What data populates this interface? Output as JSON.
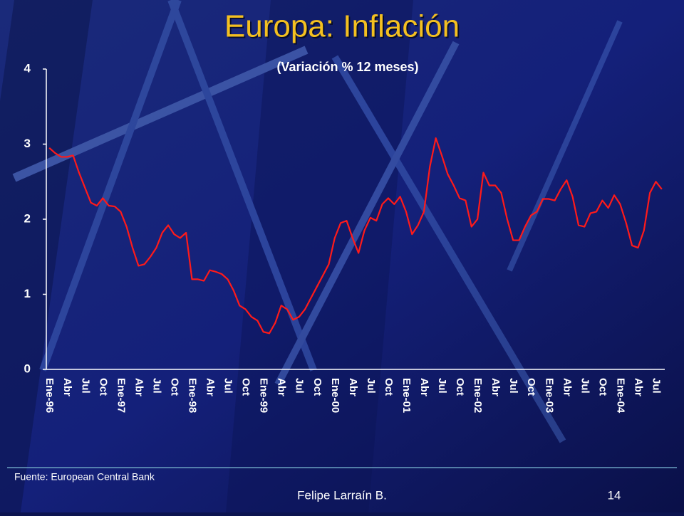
{
  "chart_data": {
    "type": "line",
    "title": "Europa: Inflación",
    "subtitle": "(Variación % 12 meses)",
    "source": "Fuente: European Central Bank",
    "categories": [
      "Ene-96",
      null,
      null,
      "Abr",
      null,
      null,
      "Jul",
      null,
      null,
      "Oct",
      null,
      null,
      "Ene-97",
      null,
      null,
      "Abr",
      null,
      null,
      "Jul",
      null,
      null,
      "Oct",
      null,
      null,
      "Ene-98",
      null,
      null,
      "Abr",
      null,
      null,
      "Jul",
      null,
      null,
      "Oct",
      null,
      null,
      "Ene-99",
      null,
      null,
      "Abr",
      null,
      null,
      "Jul",
      null,
      null,
      "Oct",
      null,
      null,
      "Ene-00",
      null,
      null,
      "Abr",
      null,
      null,
      "Jul",
      null,
      null,
      "Oct",
      null,
      null,
      "Ene-01",
      null,
      null,
      "Abr",
      null,
      null,
      "Jul",
      null,
      null,
      "Oct",
      null,
      null,
      "Ene-02",
      null,
      null,
      "Abr",
      null,
      null,
      "Jul",
      null,
      null,
      "Oct",
      null,
      null,
      "Ene-03",
      null,
      null,
      "Abr",
      null,
      null,
      "Jul",
      null,
      null,
      "Oct",
      null,
      null,
      "Ene-04",
      null,
      null,
      "Abr",
      null,
      null,
      "Jul",
      null
    ],
    "series": [
      {
        "name": null,
        "color": "#ff1a1a",
        "values": [
          2.95,
          2.88,
          2.83,
          2.83,
          2.85,
          2.62,
          2.42,
          2.22,
          2.18,
          2.28,
          2.18,
          2.17,
          2.1,
          1.9,
          1.62,
          1.38,
          1.4,
          1.5,
          1.62,
          1.82,
          1.92,
          1.8,
          1.75,
          1.82,
          1.2,
          1.2,
          1.18,
          1.32,
          1.3,
          1.27,
          1.2,
          1.05,
          0.85,
          0.8,
          0.7,
          0.65,
          0.5,
          0.48,
          0.62,
          0.85,
          0.8,
          0.66,
          0.7,
          0.8,
          0.95,
          1.1,
          1.25,
          1.4,
          1.75,
          1.95,
          1.98,
          1.75,
          1.55,
          1.85,
          2.02,
          1.98,
          2.2,
          2.28,
          2.2,
          2.3,
          2.1,
          1.8,
          1.92,
          2.1,
          2.7,
          3.08,
          2.85,
          2.6,
          2.45,
          2.28,
          2.25,
          1.9,
          2.0,
          2.62,
          2.45,
          2.45,
          2.35,
          2.0,
          1.72,
          1.72,
          1.9,
          2.05,
          2.1,
          2.27,
          2.27,
          2.25,
          2.4,
          2.52,
          2.3,
          1.92,
          1.9,
          2.08,
          2.1,
          2.25,
          2.15,
          2.32,
          2.2,
          1.95,
          1.65,
          1.62,
          1.85,
          2.35,
          2.5,
          2.4
        ]
      }
    ],
    "ylim": [
      0,
      4
    ],
    "yticks": [
      0,
      1,
      2,
      3,
      4
    ],
    "grid": false
  },
  "footer": {
    "author": "Felipe Larraín B.",
    "page": 14
  }
}
